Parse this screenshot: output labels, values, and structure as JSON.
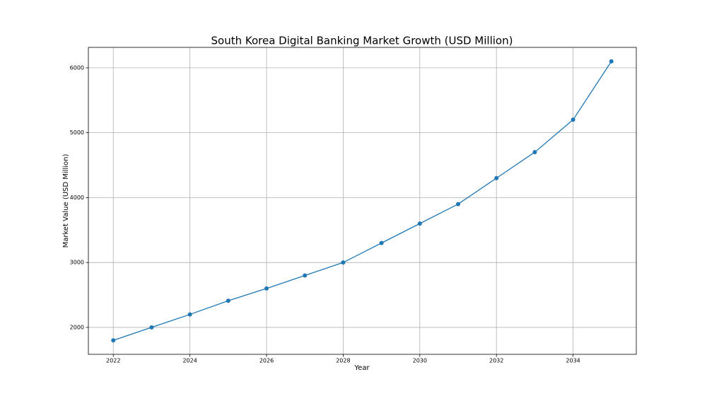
{
  "chart_data": {
    "type": "line",
    "title": "South Korea Digital Banking Market Growth (USD Million)",
    "xlabel": "Year",
    "ylabel": "Market Value (USD Million)",
    "x": [
      2022,
      2023,
      2024,
      2025,
      2026,
      2027,
      2028,
      2029,
      2030,
      2031,
      2032,
      2033,
      2034,
      2035
    ],
    "series": [
      {
        "color": "#1f77b4",
        "values": [
          1800,
          2000,
          2200,
          2410,
          2600,
          2800,
          3000,
          3300,
          3600,
          3900,
          4300,
          4700,
          5200,
          6100
        ]
      }
    ],
    "xlim": [
      2021.35,
      2035.65
    ],
    "ylim": [
      1585,
      6315
    ],
    "xticks": [
      2022,
      2024,
      2026,
      2028,
      2030,
      2032,
      2034
    ],
    "yticks": [
      2000,
      3000,
      4000,
      5000,
      6000
    ],
    "grid": true
  }
}
